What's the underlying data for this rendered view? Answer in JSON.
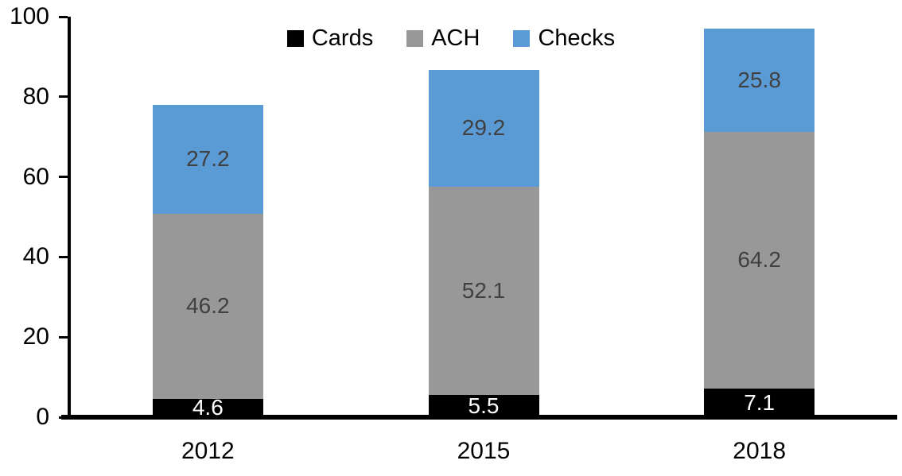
{
  "chart_data": {
    "type": "bar",
    "stacked": true,
    "title": "",
    "xlabel": "",
    "ylabel": "",
    "categories": [
      "2012",
      "2015",
      "2018"
    ],
    "series": [
      {
        "name": "Cards",
        "color": "#000000",
        "label_color": "#ffffff",
        "values": [
          4.6,
          5.5,
          7.1
        ]
      },
      {
        "name": "ACH",
        "color": "#989898",
        "label_color": "#404040",
        "values": [
          46.2,
          52.1,
          64.2
        ]
      },
      {
        "name": "Checks",
        "color": "#5B9BD5",
        "label_color": "#404040",
        "values": [
          27.2,
          29.2,
          25.8
        ]
      }
    ],
    "totals": [
      78.0,
      86.8,
      97.1
    ],
    "ylim": [
      0,
      100
    ],
    "yticks": [
      0,
      20,
      40,
      60,
      80,
      100
    ],
    "grid": false,
    "legend_position": "top-center",
    "data_labels": true,
    "colors": {
      "axis": "#000000",
      "background": "#ffffff"
    }
  }
}
